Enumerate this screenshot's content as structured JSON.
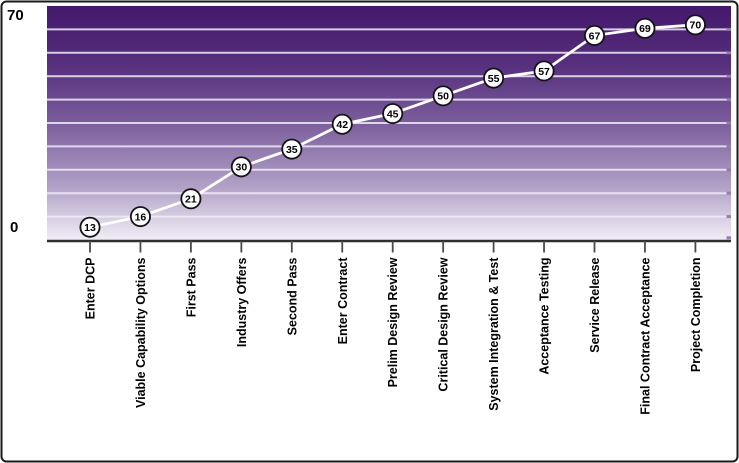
{
  "chart_data": {
    "type": "line",
    "title": "",
    "categories": [
      "Enter DCP",
      "Viable Capability Options",
      "First Pass",
      "Industry Offers",
      "Second Pass",
      "Enter Contract",
      "Prelim Design Review",
      "Critical Design Review",
      "System Integration & Test",
      "Acceptance Testing",
      "Service Release",
      "Final Contract Acceptance",
      "Project Completion"
    ],
    "values": [
      13,
      16,
      21,
      30,
      35,
      42,
      45,
      50,
      55,
      57,
      67,
      69,
      70
    ],
    "xlabel": "",
    "ylabel": "",
    "ylim": [
      0,
      70
    ],
    "y_axis": {
      "max_label": "70",
      "min_label": "0"
    },
    "grid": "horizontal-bands",
    "gridline_count": 10,
    "legend": "none",
    "marker_style": "circle-with-value-label",
    "background_style": "vertical purple-to-white gradient"
  },
  "colors": {
    "gradient_top": "#44186b",
    "gradient_upper_mid": "#562f7d",
    "gradient_mid": "#7b5d9b",
    "gradient_lower_mid": "#b3a3c8",
    "gradient_bottom": "#f2eef6",
    "gridline": "#f0ebf7",
    "gridline_end_nub": "#8a76ab",
    "series_line": "#ffffff",
    "marker_fill": "#fdfcfe",
    "marker_stroke": "#141414",
    "marker_text": "#000000",
    "axis_line": "#2f2f2f",
    "tick": "#4a4a4a",
    "category_text": "#000000",
    "frame_border": "#1a1a1a"
  }
}
